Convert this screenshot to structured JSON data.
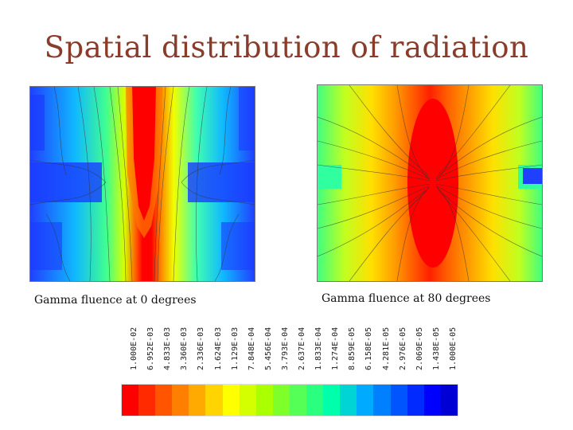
{
  "title": "Spatial distribution of radiation",
  "panels": [
    {
      "caption": "Gamma fluence at 0 degrees"
    },
    {
      "caption": "Gamma fluence at 80 degrees"
    }
  ],
  "scale": {
    "labels": [
      "1.000E-02",
      "6.952E-03",
      "4.833E-03",
      "3.360E-03",
      "2.336E-03",
      "1.624E-03",
      "1.129E-03",
      "7.848E-04",
      "5.456E-04",
      "3.793E-04",
      "2.637E-04",
      "1.833E-04",
      "1.274E-04",
      "8.859E-05",
      "6.158E-05",
      "4.281E-05",
      "2.976E-05",
      "2.069E-05",
      "1.438E-05",
      "1.000E-05"
    ],
    "colors": [
      "#ff0000",
      "#ff2a00",
      "#ff5500",
      "#ff7f00",
      "#ffaa00",
      "#ffd400",
      "#ffff00",
      "#d4ff00",
      "#aaff00",
      "#7fff2a",
      "#55ff55",
      "#2aff7f",
      "#00ffaa",
      "#00d4d4",
      "#00aaff",
      "#0080ff",
      "#0055ff",
      "#002aff",
      "#0000ff",
      "#0000d4"
    ]
  }
}
